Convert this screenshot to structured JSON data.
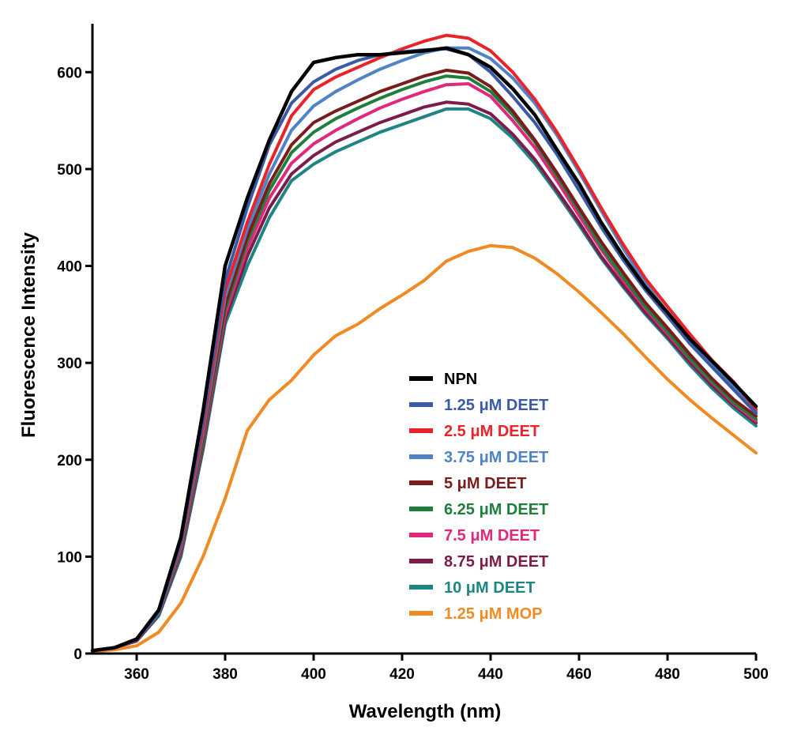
{
  "chart_data": {
    "type": "line",
    "xlabel": "Wavelength (nm)",
    "ylabel": "Fluorescence Intensity",
    "xlim": [
      350,
      500
    ],
    "ylim": [
      0,
      650
    ],
    "xticks": [
      360,
      380,
      400,
      420,
      440,
      460,
      480,
      500
    ],
    "yticks": [
      0,
      100,
      200,
      300,
      400,
      500,
      600
    ],
    "grid": false,
    "legend_position": "lower-center",
    "x": [
      350,
      355,
      360,
      365,
      370,
      375,
      380,
      385,
      390,
      395,
      400,
      405,
      410,
      415,
      420,
      425,
      430,
      435,
      440,
      445,
      450,
      455,
      460,
      465,
      470,
      475,
      480,
      485,
      490,
      495,
      500
    ],
    "series": [
      {
        "name": "NPN",
        "color": "#000000",
        "values": [
          3,
          6,
          15,
          45,
          120,
          250,
          400,
          470,
          530,
          580,
          610,
          615,
          618,
          618,
          620,
          622,
          625,
          618,
          605,
          583,
          556,
          520,
          485,
          445,
          410,
          378,
          352,
          325,
          302,
          279,
          255
        ]
      },
      {
        "name": "1.25 μM DEET",
        "color": "#3a5aa8",
        "values": [
          3,
          6,
          14,
          43,
          115,
          240,
          385,
          460,
          525,
          568,
          590,
          603,
          612,
          618,
          621,
          623,
          624,
          618,
          600,
          575,
          548,
          515,
          478,
          440,
          406,
          375,
          348,
          320,
          296,
          272,
          248
        ]
      },
      {
        "name": "2.5 μM DEET",
        "color": "#e8232a",
        "values": [
          3,
          6,
          14,
          43,
          112,
          232,
          375,
          445,
          505,
          555,
          582,
          595,
          605,
          615,
          624,
          632,
          638,
          635,
          622,
          600,
          572,
          538,
          500,
          460,
          422,
          387,
          358,
          330,
          303,
          280,
          252
        ]
      },
      {
        "name": "3.75 μM DEET",
        "color": "#4f83c6",
        "values": [
          3,
          6,
          14,
          42,
          110,
          228,
          368,
          438,
          495,
          540,
          565,
          580,
          592,
          603,
          612,
          620,
          625,
          625,
          614,
          594,
          568,
          535,
          497,
          457,
          418,
          382,
          352,
          324,
          298,
          275,
          250
        ]
      },
      {
        "name": "5 μM DEET",
        "color": "#7a1c1c",
        "values": [
          3,
          6,
          14,
          42,
          108,
          225,
          360,
          430,
          485,
          525,
          548,
          560,
          570,
          580,
          588,
          596,
          602,
          599,
          585,
          560,
          530,
          496,
          460,
          425,
          393,
          362,
          336,
          309,
          284,
          262,
          245
        ]
      },
      {
        "name": "6.25 μM DEET",
        "color": "#1e7f3c",
        "values": [
          3,
          6,
          14,
          41,
          106,
          220,
          355,
          425,
          478,
          517,
          538,
          552,
          563,
          573,
          582,
          590,
          596,
          594,
          580,
          556,
          528,
          493,
          457,
          420,
          388,
          358,
          332,
          305,
          281,
          259,
          242
        ]
      },
      {
        "name": "7.5 μM DEET",
        "color": "#e0287d",
        "values": [
          3,
          6,
          14,
          41,
          105,
          218,
          350,
          418,
          470,
          506,
          526,
          540,
          552,
          563,
          572,
          580,
          587,
          588,
          575,
          550,
          522,
          488,
          452,
          417,
          385,
          356,
          330,
          304,
          280,
          258,
          240
        ]
      },
      {
        "name": "8.75 μM DEET",
        "color": "#7b1c4a",
        "values": [
          3,
          6,
          13,
          40,
          103,
          214,
          345,
          410,
          460,
          495,
          514,
          528,
          538,
          548,
          556,
          564,
          569,
          567,
          557,
          536,
          510,
          478,
          445,
          410,
          380,
          352,
          327,
          301,
          277,
          256,
          238
        ]
      },
      {
        "name": "10 μM DEET",
        "color": "#1e8584",
        "values": [
          3,
          6,
          13,
          39,
          100,
          210,
          340,
          400,
          450,
          488,
          505,
          518,
          528,
          538,
          546,
          554,
          562,
          562,
          552,
          532,
          506,
          475,
          442,
          408,
          378,
          350,
          325,
          298,
          274,
          253,
          235
        ]
      },
      {
        "name": "1.25 μM MOP",
        "color": "#f08a24",
        "values": [
          2,
          4,
          8,
          22,
          52,
          100,
          160,
          230,
          262,
          282,
          308,
          328,
          340,
          356,
          370,
          385,
          405,
          415,
          421,
          419,
          408,
          392,
          373,
          352,
          330,
          306,
          283,
          262,
          243,
          225,
          207
        ]
      }
    ]
  }
}
